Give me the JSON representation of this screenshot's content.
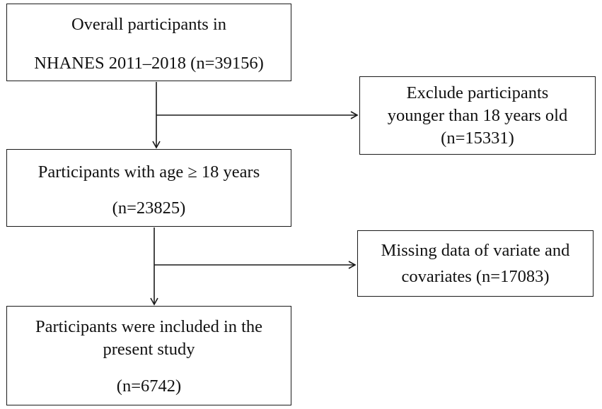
{
  "boxes": [
    {
      "id": "overall-participants",
      "lines": [
        "Overall participants in",
        "NHANES 2011–2018 (n=39156)"
      ]
    },
    {
      "id": "exclude-under-18",
      "lines": [
        "Exclude participants",
        "younger than 18 years old",
        "(n=15331)"
      ]
    },
    {
      "id": "age-18-plus",
      "lines": [
        "Participants with age ≥ 18 years",
        "(n=23825)"
      ]
    },
    {
      "id": "missing-data",
      "lines": [
        "Missing data of variate and",
        "covariates (n=17083)"
      ]
    },
    {
      "id": "included-participants",
      "lines": [
        "Participants were included in the",
        "present study",
        "(n=6742)"
      ]
    }
  ]
}
